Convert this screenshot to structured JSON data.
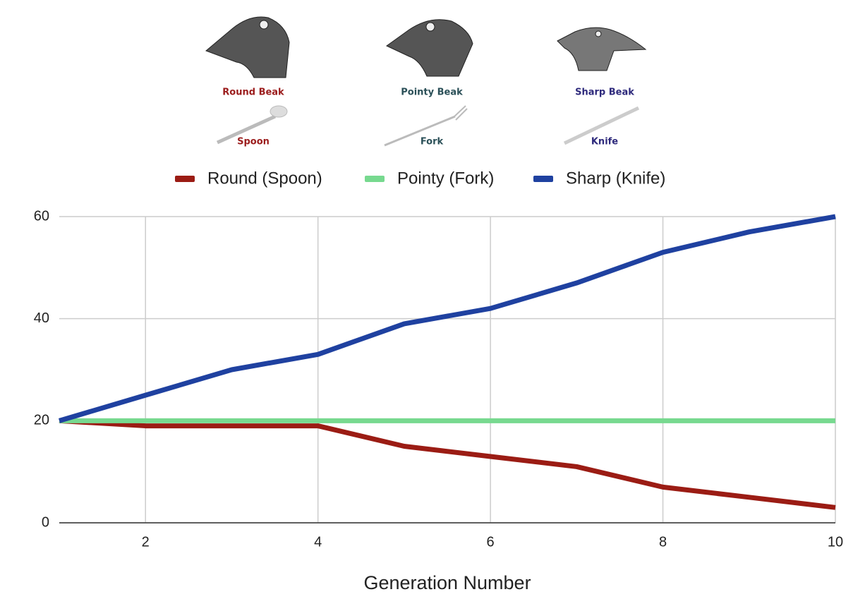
{
  "chart_data": {
    "type": "line",
    "figures": [
      {
        "label": "Round Beak",
        "utensil": "Spoon",
        "color": "#9b1c1c"
      },
      {
        "label": "Pointy Beak",
        "utensil": "Fork",
        "color": "#2b5058"
      },
      {
        "label": "Sharp Beak",
        "utensil": "Knife",
        "color": "#2e2a7c"
      }
    ],
    "x_label": "Generation Number",
    "x": [
      1,
      2,
      3,
      4,
      5,
      6,
      7,
      8,
      9,
      10
    ],
    "series": [
      {
        "name": "Round (Spoon)",
        "color": "#9b1c14",
        "values": [
          20,
          19,
          19,
          19,
          15,
          13,
          11,
          7,
          5,
          3
        ]
      },
      {
        "name": "Pointy (Fork)",
        "color": "#77d98f",
        "values": [
          20,
          20,
          20,
          20,
          20,
          20,
          20,
          20,
          20,
          20
        ]
      },
      {
        "name": "Sharp (Knife)",
        "color": "#1f41a0",
        "values": [
          20,
          25,
          30,
          33,
          39,
          42,
          47,
          53,
          57,
          60
        ]
      }
    ],
    "xlim": [
      1,
      10
    ],
    "xticks": [
      2,
      4,
      6,
      8,
      10
    ],
    "ylim": [
      0,
      60
    ],
    "yticks": [
      0,
      20,
      40,
      60
    ],
    "grid": true
  }
}
